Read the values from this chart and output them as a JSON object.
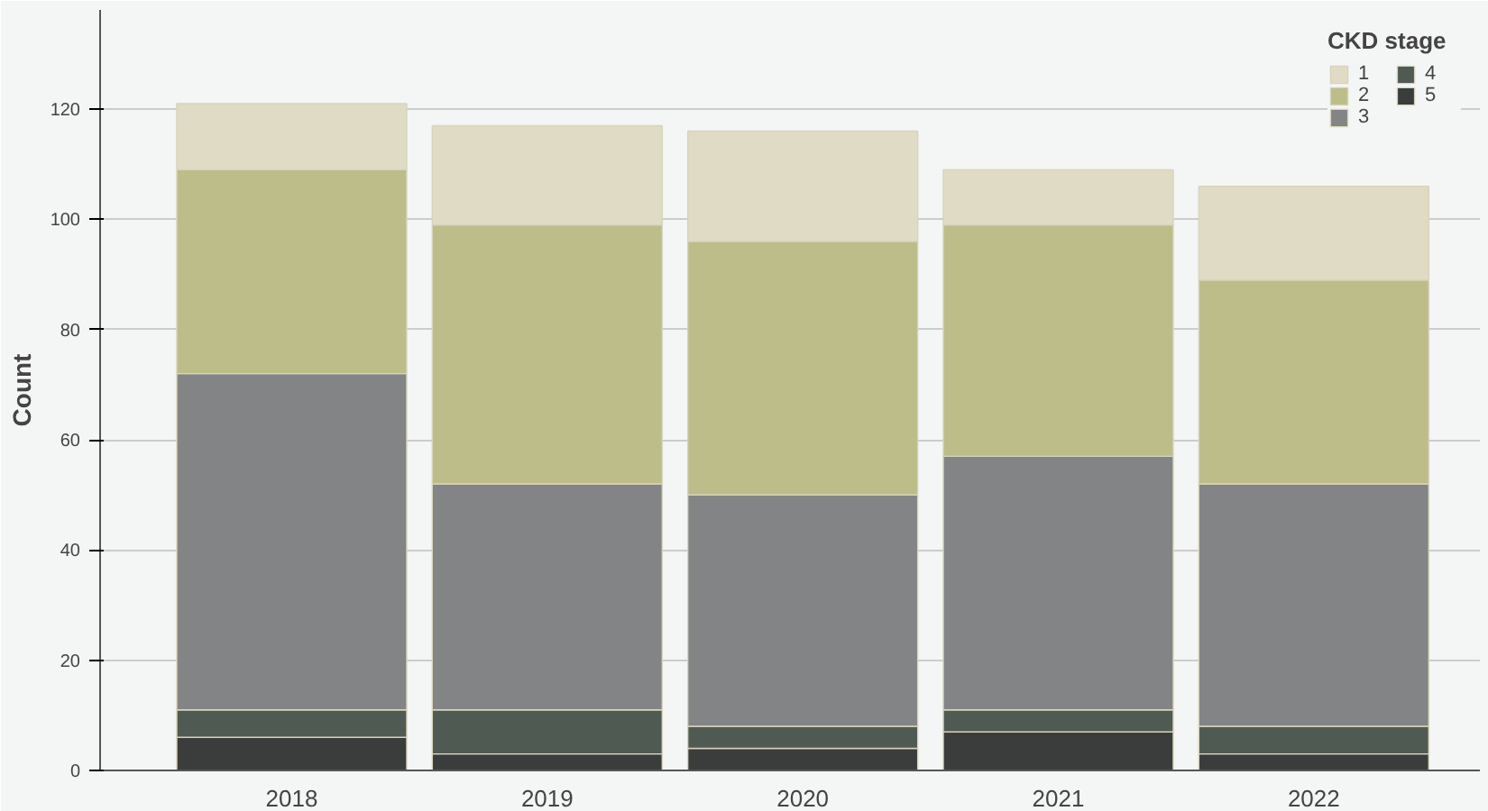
{
  "chart_data": {
    "type": "bar",
    "stacked": true,
    "ylabel": "Count",
    "legend_title": "CKD stage",
    "legend": "top right",
    "grid": "y",
    "categories": [
      "2018",
      "2019",
      "2020",
      "2021",
      "2022"
    ],
    "series": [
      {
        "name": "5",
        "color": "#3a3d3b",
        "values": [
          6,
          3,
          4,
          7,
          3
        ]
      },
      {
        "name": "4",
        "color": "#4f5a52",
        "values": [
          5,
          8,
          4,
          4,
          5
        ]
      },
      {
        "name": "3",
        "color": "#838486",
        "values": [
          61,
          41,
          42,
          46,
          44
        ]
      },
      {
        "name": "2",
        "color": "#bdbd8a",
        "values": [
          37,
          47,
          46,
          42,
          37
        ]
      },
      {
        "name": "1",
        "color": "#e0dbc4",
        "values": [
          12,
          18,
          20,
          10,
          17
        ]
      }
    ],
    "ylim": [
      0,
      138
    ],
    "yticks": [
      0,
      20,
      40,
      60,
      80,
      100,
      120
    ]
  }
}
